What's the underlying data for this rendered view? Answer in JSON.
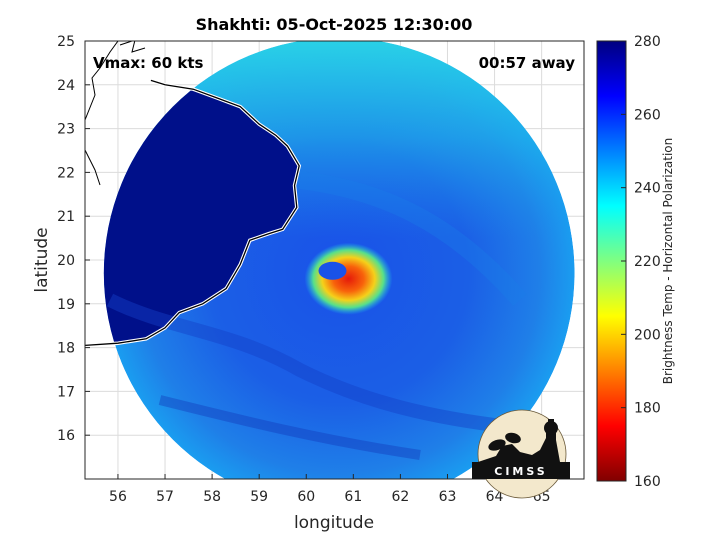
{
  "title": "Shakhti: 05-Oct-2025 12:30:00",
  "vmax_label": "Vmax: 60 kts",
  "time_away": "00:57 away",
  "logo": {
    "text": "CIMSS",
    "icon": "cimss-logo-icon"
  },
  "chart_data": {
    "type": "heatmap",
    "xlabel": "longitude",
    "ylabel": "latitude",
    "xlim": [
      55.3,
      65.9
    ],
    "ylim": [
      15.0,
      25.0
    ],
    "xticks": [
      56,
      57,
      58,
      59,
      60,
      61,
      62,
      63,
      64,
      65
    ],
    "yticks": [
      16,
      17,
      18,
      19,
      20,
      21,
      22,
      23,
      24,
      25
    ],
    "grid": true,
    "colorbar": {
      "label": "Brightness Temp - Horizontal Polarization",
      "range": [
        160,
        280
      ],
      "ticks": [
        160,
        180,
        200,
        220,
        240,
        260,
        280
      ],
      "colormap": "jet"
    },
    "swath": {
      "center": [
        60.7,
        19.7
      ],
      "radius_deg": 5.0
    },
    "storm_center": [
      60.6,
      19.8
    ],
    "coastline": [
      [
        55.3,
        18.05
      ],
      [
        56.0,
        18.1
      ],
      [
        56.6,
        18.2
      ],
      [
        57.0,
        18.45
      ],
      [
        57.3,
        18.8
      ],
      [
        57.8,
        19.0
      ],
      [
        58.3,
        19.35
      ],
      [
        58.6,
        19.9
      ],
      [
        58.8,
        20.45
      ],
      [
        59.2,
        20.6
      ],
      [
        59.5,
        20.7
      ],
      [
        59.8,
        21.2
      ],
      [
        59.75,
        21.7
      ],
      [
        59.85,
        22.15
      ],
      [
        59.6,
        22.6
      ],
      [
        59.35,
        22.85
      ],
      [
        59.0,
        23.1
      ],
      [
        58.6,
        23.5
      ],
      [
        58.1,
        23.7
      ],
      [
        57.6,
        23.9
      ],
      [
        57.0,
        24.0
      ],
      [
        56.7,
        24.1
      ]
    ],
    "land_color": "#00108a"
  }
}
